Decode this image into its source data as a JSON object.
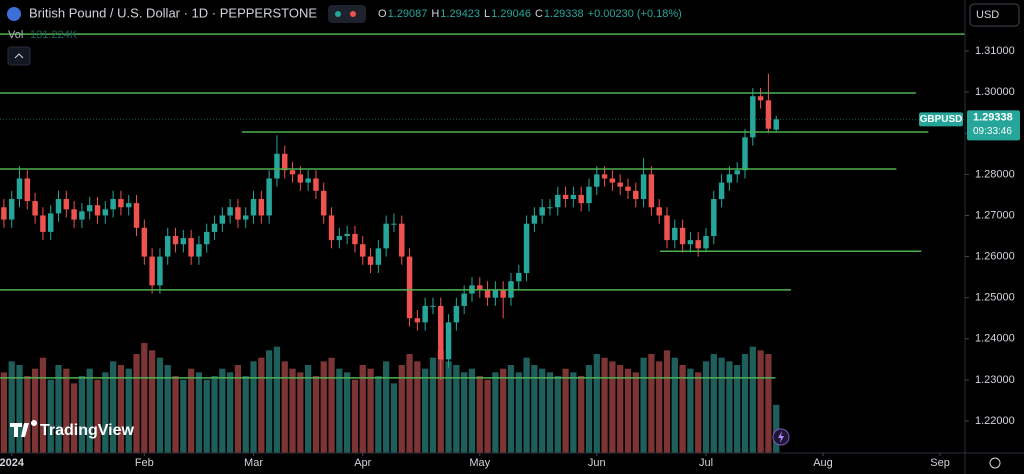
{
  "chart_data": {
    "type": "candlestick",
    "title": "British Pound / U.S. Dollar · 1D · PEPPERSTONE",
    "ohlc": [
      {
        "key": "O",
        "value": "1.29087"
      },
      {
        "key": "H",
        "value": "1.29423"
      },
      {
        "key": "L",
        "value": "1.29046"
      },
      {
        "key": "C",
        "value": "1.29338"
      }
    ],
    "change": "+0.00230 (+0.18%)",
    "currency": "USD",
    "symbol": "GBPUSD",
    "last_price_label": "1.29338",
    "countdown": "09:33:46",
    "watermark": "TradingView",
    "up_color": "#26a69a",
    "down_color": "#ef5350",
    "open": [
      1.272,
      1.269,
      1.274,
      1.279,
      1.2735,
      1.27,
      1.266,
      1.2705,
      1.274,
      1.2715,
      1.269,
      1.271,
      1.2725,
      1.27,
      1.2715,
      1.274,
      1.272,
      1.273,
      1.267,
      1.26,
      1.253,
      1.26,
      1.265,
      1.263,
      1.2645,
      1.26,
      1.263,
      1.266,
      1.268,
      1.27,
      1.272,
      1.269,
      1.27,
      1.274,
      1.27,
      1.279,
      1.285,
      1.281,
      1.28,
      1.278,
      1.279,
      1.276,
      1.27,
      1.264,
      1.265,
      1.2655,
      1.263,
      1.26,
      1.258,
      1.262,
      1.268,
      1.268,
      1.26,
      1.245,
      1.244,
      1.248,
      1.248,
      1.235,
      1.244,
      1.248,
      1.251,
      1.253,
      1.252,
      1.25,
      1.252,
      1.25,
      1.254,
      1.256,
      1.268,
      1.27,
      1.272,
      1.272,
      1.275,
      1.274,
      1.275,
      1.273,
      1.277,
      1.28,
      1.279,
      1.278,
      1.277,
      1.276,
      1.274,
      1.28,
      1.272,
      1.27,
      1.264,
      1.267,
      1.263,
      1.264,
      1.262,
      1.265,
      1.274,
      1.278,
      1.28,
      1.281,
      1.289,
      1.299,
      1.298,
      1.29087
    ],
    "high": [
      1.274,
      1.276,
      1.282,
      1.281,
      1.2755,
      1.272,
      1.2725,
      1.276,
      1.276,
      1.2735,
      1.273,
      1.2745,
      1.2745,
      1.2735,
      1.276,
      1.276,
      1.275,
      1.275,
      1.269,
      1.262,
      1.262,
      1.267,
      1.267,
      1.2665,
      1.2665,
      1.265,
      1.268,
      1.27,
      1.272,
      1.274,
      1.274,
      1.272,
      1.276,
      1.276,
      1.281,
      1.2895,
      1.287,
      1.283,
      1.282,
      1.281,
      1.281,
      1.278,
      1.272,
      1.267,
      1.2675,
      1.2675,
      1.265,
      1.262,
      1.264,
      1.27,
      1.2705,
      1.27,
      1.262,
      1.247,
      1.25,
      1.25,
      1.25,
      1.246,
      1.25,
      1.253,
      1.255,
      1.255,
      1.254,
      1.254,
      1.254,
      1.256,
      1.258,
      1.27,
      1.272,
      1.274,
      1.274,
      1.277,
      1.277,
      1.277,
      1.277,
      1.279,
      1.282,
      1.282,
      1.281,
      1.28,
      1.279,
      1.278,
      1.284,
      1.282,
      1.274,
      1.272,
      1.269,
      1.269,
      1.266,
      1.266,
      1.267,
      1.276,
      1.28,
      1.282,
      1.283,
      1.291,
      1.301,
      1.301,
      1.3045,
      1.29423
    ],
    "low": [
      1.267,
      1.267,
      1.272,
      1.2715,
      1.268,
      1.264,
      1.264,
      1.2685,
      1.2695,
      1.267,
      1.267,
      1.269,
      1.268,
      1.268,
      1.2695,
      1.27,
      1.27,
      1.265,
      1.258,
      1.251,
      1.251,
      1.258,
      1.261,
      1.261,
      1.258,
      1.258,
      1.261,
      1.264,
      1.266,
      1.268,
      1.267,
      1.267,
      1.268,
      1.268,
      1.268,
      1.277,
      1.279,
      1.278,
      1.276,
      1.276,
      1.274,
      1.268,
      1.262,
      1.262,
      1.263,
      1.261,
      1.258,
      1.256,
      1.256,
      1.26,
      1.266,
      1.258,
      1.243,
      1.242,
      1.242,
      1.246,
      1.23,
      1.233,
      1.242,
      1.246,
      1.249,
      1.25,
      1.248,
      1.248,
      1.245,
      1.248,
      1.252,
      1.254,
      1.266,
      1.268,
      1.27,
      1.27,
      1.272,
      1.272,
      1.271,
      1.271,
      1.275,
      1.277,
      1.276,
      1.275,
      1.274,
      1.272,
      1.272,
      1.27,
      1.268,
      1.262,
      1.262,
      1.261,
      1.261,
      1.26,
      1.261,
      1.263,
      1.272,
      1.276,
      1.278,
      1.279,
      1.287,
      1.296,
      1.29,
      1.29046
    ],
    "close": [
      1.269,
      1.274,
      1.279,
      1.2735,
      1.27,
      1.266,
      1.2705,
      1.274,
      1.2715,
      1.269,
      1.271,
      1.2725,
      1.27,
      1.2715,
      1.274,
      1.272,
      1.273,
      1.267,
      1.26,
      1.253,
      1.26,
      1.265,
      1.263,
      1.2645,
      1.26,
      1.263,
      1.266,
      1.268,
      1.27,
      1.272,
      1.269,
      1.27,
      1.274,
      1.27,
      1.279,
      1.285,
      1.281,
      1.28,
      1.278,
      1.279,
      1.276,
      1.27,
      1.264,
      1.265,
      1.2655,
      1.263,
      1.26,
      1.258,
      1.262,
      1.268,
      1.268,
      1.26,
      1.245,
      1.244,
      1.248,
      1.248,
      1.235,
      1.244,
      1.248,
      1.251,
      1.253,
      1.252,
      1.25,
      1.252,
      1.25,
      1.254,
      1.256,
      1.268,
      1.27,
      1.272,
      1.272,
      1.275,
      1.274,
      1.275,
      1.273,
      1.277,
      1.28,
      1.279,
      1.278,
      1.277,
      1.276,
      1.274,
      1.28,
      1.272,
      1.27,
      1.264,
      1.267,
      1.263,
      1.264,
      1.262,
      1.265,
      1.274,
      1.278,
      1.28,
      1.281,
      1.289,
      1.299,
      1.298,
      1.2911,
      1.29338
    ],
    "volume": {
      "name": "Vol",
      "label": "131.224K",
      "up_color": "#1f5f5b",
      "down_color": "#7c3434",
      "values": [
        220000,
        250000,
        240000,
        210000,
        230000,
        260000,
        200000,
        240000,
        230000,
        190000,
        210000,
        230000,
        200000,
        220000,
        250000,
        240000,
        230000,
        270000,
        300000,
        280000,
        260000,
        240000,
        210000,
        200000,
        230000,
        220000,
        200000,
        210000,
        230000,
        220000,
        240000,
        210000,
        250000,
        260000,
        280000,
        290000,
        250000,
        230000,
        220000,
        240000,
        210000,
        250000,
        260000,
        230000,
        220000,
        200000,
        240000,
        230000,
        210000,
        250000,
        190000,
        240000,
        270000,
        250000,
        230000,
        260000,
        280000,
        250000,
        240000,
        220000,
        230000,
        210000,
        200000,
        220000,
        230000,
        240000,
        220000,
        260000,
        240000,
        230000,
        220000,
        210000,
        230000,
        220000,
        210000,
        240000,
        270000,
        260000,
        250000,
        240000,
        230000,
        220000,
        260000,
        270000,
        250000,
        280000,
        260000,
        240000,
        230000,
        220000,
        250000,
        270000,
        260000,
        250000,
        240000,
        270000,
        290000,
        280000,
        270000,
        131224
      ]
    },
    "level_color": "#4caf50",
    "levels": [
      {
        "value": 1.3141,
        "from": -0.5,
        "to": 123.2
      },
      {
        "value": 1.2998,
        "from": -0.5,
        "to": 116.9
      },
      {
        "value": 1.2903,
        "from": 30.5,
        "to": 118.5
      },
      {
        "value": 1.2813,
        "from": -0.5,
        "to": 114.4
      },
      {
        "value": 1.2613,
        "from": 84.1,
        "to": 117.6
      },
      {
        "value": 1.2519,
        "from": -0.5,
        "to": 100.9
      },
      {
        "value": 1.2305,
        "from": -0.5,
        "to": 98.9
      }
    ],
    "xlim": [
      -0.5,
      123.2
    ],
    "xticks": [
      {
        "value": 1,
        "label": "2024"
      },
      {
        "value": 18,
        "label": "Feb"
      },
      {
        "value": 32,
        "label": "Mar"
      },
      {
        "value": 46,
        "label": "Apr"
      },
      {
        "value": 61,
        "label": "May"
      },
      {
        "value": 76,
        "label": "Jun"
      },
      {
        "value": 90,
        "label": "Jul"
      },
      {
        "value": 105,
        "label": "Aug"
      },
      {
        "value": 120,
        "label": "Sep"
      }
    ],
    "ylim": [
      1.21222,
      1.32241
    ],
    "yticks": [
      {
        "value": 1.31,
        "label": "1.31000"
      },
      {
        "value": 1.3,
        "label": "1.30000"
      },
      {
        "value": 1.29,
        "label": "1.29000"
      },
      {
        "value": 1.28,
        "label": "1.28000"
      },
      {
        "value": 1.27,
        "label": "1.27000"
      },
      {
        "value": 1.26,
        "label": "1.26000"
      },
      {
        "value": 1.25,
        "label": "1.25000"
      },
      {
        "value": 1.24,
        "label": "1.24000"
      },
      {
        "value": 1.23,
        "label": "1.23000"
      },
      {
        "value": 1.22,
        "label": "1.22000"
      }
    ]
  }
}
